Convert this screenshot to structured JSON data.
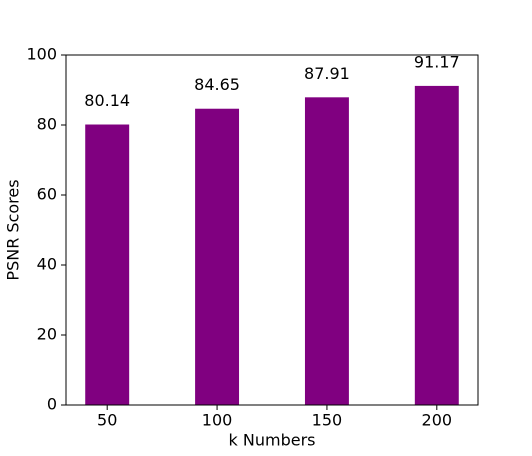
{
  "chart_data": {
    "type": "bar",
    "xlabel": "k Numbers",
    "ylabel": "PSNR Scores",
    "categories": [
      "50",
      "100",
      "150",
      "200"
    ],
    "values": [
      80.14,
      84.65,
      87.91,
      91.17
    ],
    "color": "#800080",
    "ylim": [
      0,
      100
    ],
    "yticks": [
      0,
      20,
      40,
      60,
      80,
      100
    ],
    "grid": false
  }
}
